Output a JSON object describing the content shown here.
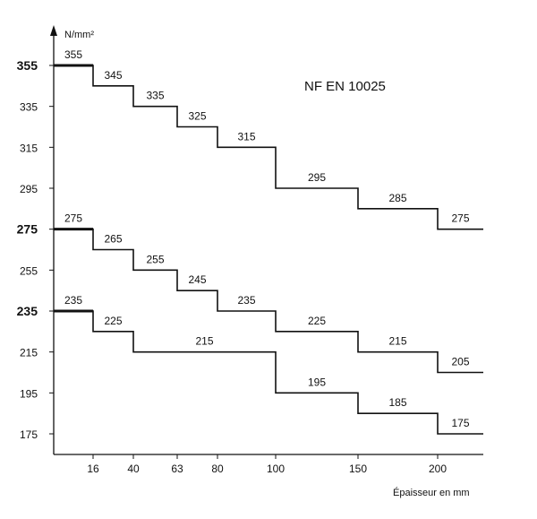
{
  "chart_data": {
    "type": "line",
    "step": true,
    "title": "NF EN 10025",
    "xlabel": "Épaisseur en mm",
    "ylabel": "N/mm²",
    "x_ticks": [
      16,
      40,
      63,
      80,
      100,
      150,
      200
    ],
    "y_ticks": [
      175,
      195,
      215,
      235,
      255,
      275,
      295,
      315,
      335,
      355
    ],
    "y_ticks_bold": [
      235,
      275,
      355
    ],
    "xlim": [
      0,
      230
    ],
    "ylim": [
      170,
      365
    ],
    "grid": false,
    "series": [
      {
        "segments": [
          {
            "x0": 0,
            "x1": 16,
            "y": 355,
            "label": "355"
          },
          {
            "x0": 16,
            "x1": 40,
            "y": 345,
            "label": "345"
          },
          {
            "x0": 40,
            "x1": 63,
            "y": 335,
            "label": "335"
          },
          {
            "x0": 63,
            "x1": 80,
            "y": 325,
            "label": "325"
          },
          {
            "x0": 80,
            "x1": 100,
            "y": 315,
            "label": "315"
          },
          {
            "x0": 100,
            "x1": 150,
            "y": 295,
            "label": "295"
          },
          {
            "x0": 150,
            "x1": 200,
            "y": 285,
            "label": "285"
          },
          {
            "x0": 200,
            "x1": 230,
            "y": 275,
            "label": "275"
          }
        ]
      },
      {
        "segments": [
          {
            "x0": 0,
            "x1": 16,
            "y": 275,
            "label": "275"
          },
          {
            "x0": 16,
            "x1": 40,
            "y": 265,
            "label": "265"
          },
          {
            "x0": 40,
            "x1": 63,
            "y": 255,
            "label": "255"
          },
          {
            "x0": 63,
            "x1": 80,
            "y": 245,
            "label": "245"
          },
          {
            "x0": 80,
            "x1": 100,
            "y": 235,
            "label": "235"
          },
          {
            "x0": 100,
            "x1": 150,
            "y": 225,
            "label": "225"
          },
          {
            "x0": 150,
            "x1": 200,
            "y": 215,
            "label": "215"
          },
          {
            "x0": 200,
            "x1": 230,
            "y": 205,
            "label": "205"
          }
        ]
      },
      {
        "segments": [
          {
            "x0": 0,
            "x1": 16,
            "y": 235,
            "label": "235"
          },
          {
            "x0": 16,
            "x1": 40,
            "y": 225,
            "label": "225"
          },
          {
            "x0": 40,
            "x1": 100,
            "y": 215,
            "label": "215"
          },
          {
            "x0": 100,
            "x1": 150,
            "y": 195,
            "label": "195"
          },
          {
            "x0": 150,
            "x1": 200,
            "y": 185,
            "label": "185"
          },
          {
            "x0": 200,
            "x1": 230,
            "y": 175,
            "label": "175"
          }
        ]
      }
    ]
  }
}
